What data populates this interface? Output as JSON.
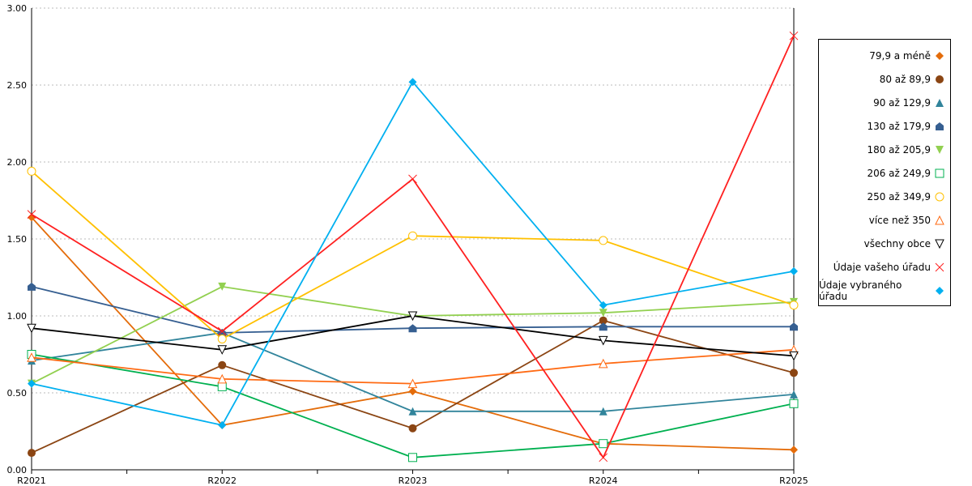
{
  "chart_data": {
    "type": "line",
    "title": "",
    "xlabel": "",
    "ylabel": "",
    "ylim": [
      0,
      3
    ],
    "yticks": [
      "0.00",
      "0.50",
      "1.00",
      "1.50",
      "2.00",
      "2.50",
      "3.00"
    ],
    "ytick_values": [
      0,
      0.5,
      1,
      1.5,
      2,
      2.5,
      3
    ],
    "categories": [
      "R2021",
      "R2022",
      "R2023",
      "R2024",
      "R2025"
    ],
    "grid": true,
    "legend_position": "right",
    "series": [
      {
        "name": "79,9 a méně",
        "color": "#e46c0a",
        "marker": "diamond",
        "values": [
          1.64,
          0.29,
          0.51,
          0.17,
          0.13
        ]
      },
      {
        "name": "80 až 89,9",
        "color": "#8b4513",
        "marker": "circle",
        "values": [
          0.11,
          0.68,
          0.27,
          0.97,
          0.63
        ]
      },
      {
        "name": "90 až 129,9",
        "color": "#31849b",
        "marker": "triangle",
        "values": [
          0.71,
          0.89,
          0.38,
          0.38,
          0.49
        ]
      },
      {
        "name": "130 až 179,9",
        "color": "#365f91",
        "marker": "pentagon",
        "values": [
          1.19,
          0.89,
          0.92,
          0.93,
          0.93
        ]
      },
      {
        "name": "180 až 205,9",
        "color": "#92d050",
        "marker": "triangle-down",
        "values": [
          0.56,
          1.19,
          1.0,
          1.02,
          1.09
        ]
      },
      {
        "name": "206 až 249,9",
        "color": "#00b050",
        "marker": "square-open",
        "values": [
          0.75,
          0.54,
          0.08,
          0.17,
          0.43
        ]
      },
      {
        "name": "250 až 349,9",
        "color": "#ffc000",
        "marker": "circle-open",
        "values": [
          1.94,
          0.85,
          1.52,
          1.49,
          1.07
        ]
      },
      {
        "name": "více než 350",
        "color": "#ff6a13",
        "marker": "triangle-open",
        "values": [
          0.73,
          0.59,
          0.56,
          0.69,
          0.78
        ]
      },
      {
        "name": "všechny obce",
        "color": "#000000",
        "marker": "triangle-down-open",
        "values": [
          0.92,
          0.78,
          1.0,
          0.84,
          0.74
        ]
      },
      {
        "name": "Údaje vašeho úřadu",
        "color": "#ff2020",
        "marker": "x",
        "values": [
          1.66,
          0.9,
          1.89,
          0.08,
          2.82
        ]
      },
      {
        "name": "Údaje vybraného úřadu",
        "color": "#00b0f0",
        "marker": "diamond",
        "values": [
          0.56,
          0.29,
          2.52,
          1.07,
          1.29
        ]
      }
    ]
  }
}
